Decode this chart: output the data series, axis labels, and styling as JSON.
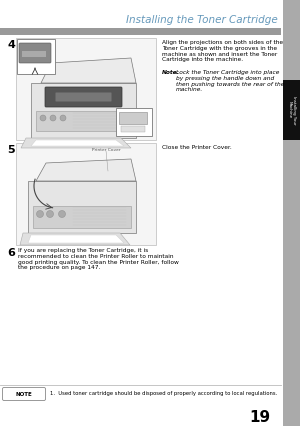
{
  "title": "Installing the Toner Cartridge",
  "title_color": "#6699BB",
  "title_fontsize": 7.5,
  "bg_color": "#ffffff",
  "header_bar_color": "#999999",
  "sidebar_color": "#aaaaaa",
  "sidebar_tab_color": "#111111",
  "sidebar_text": "Installing Your\nMachine",
  "step4_num": "4",
  "step4_main": "Align the projections on both sides of the\nToner Cartridge with the grooves in the\nmachine as shown and insert the Toner\nCartridge into the machine.",
  "step4_note_bold": "Note:",
  "step4_note_rest": "Lock the Toner Cartridge into place\nby pressing the handle down and\nthen pushing towards the rear of the\nmachine.",
  "step5_num": "5",
  "step5_text": "Close the Printer Cover.",
  "step5_img_label": "Printer Cover",
  "step6_num": "6",
  "step6_text": "If you are replacing the Toner Cartridge, it is\nrecommended to clean the Printer Roller to maintain\ngood printing quality. To clean the Printer Roller, follow\nthe procedure on page 147.",
  "note_label": "NOTE",
  "note_text": "1.  Used toner cartridge should be disposed of properly according to local regulations.",
  "page_num": "19",
  "text_fontsize": 4.2,
  "note_fontsize": 3.8,
  "step_num_fontsize": 8
}
